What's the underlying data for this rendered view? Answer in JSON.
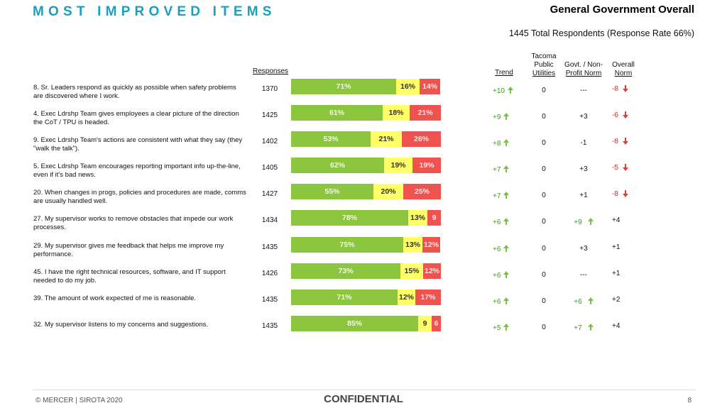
{
  "header": {
    "title": "MOST IMPROVED ITEMS",
    "subtitle": "General Government Overall",
    "respondents": "1445 Total Respondents (Response Rate  66%)"
  },
  "columns": {
    "responses": "Responses",
    "trend": "Trend",
    "tpu": [
      "Tacoma",
      "Public",
      "Utilities"
    ],
    "govt": [
      "Govt. / Non-",
      "Profit Norm"
    ],
    "overall": [
      "Overall",
      "Norm"
    ]
  },
  "rows": [
    {
      "question": "8. Sr. Leaders respond as quickly as possible when safety problems are discovered where I work.",
      "responses": "1370",
      "fav": 71,
      "neu": 16,
      "unf": 14,
      "fav_label": "71%",
      "neu_label": "16%",
      "unf_label": "14%",
      "trend": "+10",
      "tpu": "0",
      "govt": "---",
      "govt_dir": "none",
      "overall": "-8",
      "overall_dir": "down"
    },
    {
      "question": "4. Exec Ldrshp Team gives employees a clear picture of the direction the CoT / TPU is headed.",
      "responses": "1425",
      "fav": 61,
      "neu": 18,
      "unf": 21,
      "fav_label": "61%",
      "neu_label": "18%",
      "unf_label": "21%",
      "trend": "+9",
      "tpu": "0",
      "govt": "+3",
      "govt_dir": "none",
      "overall": "-6",
      "overall_dir": "down"
    },
    {
      "question": "9. Exec Ldrshp Team's actions are consistent with what they say (they \"walk the talk\").",
      "responses": "1402",
      "fav": 53,
      "neu": 21,
      "unf": 26,
      "fav_label": "53%",
      "neu_label": "21%",
      "unf_label": "26%",
      "trend": "+8",
      "tpu": "0",
      "govt": "-1",
      "govt_dir": "none",
      "overall": "-8",
      "overall_dir": "down"
    },
    {
      "question": "5. Exec Ldrshp Team encourages reporting important info up-the-line, even if it's bad news.",
      "responses": "1405",
      "fav": 62,
      "neu": 19,
      "unf": 19,
      "fav_label": "62%",
      "neu_label": "19%",
      "unf_label": "19%",
      "trend": "+7",
      "tpu": "0",
      "govt": "+3",
      "govt_dir": "none",
      "overall": "-5",
      "overall_dir": "down"
    },
    {
      "question": "20. When changes in progs, policies and procedures are made, comms are usually handled well.",
      "responses": "1427",
      "fav": 55,
      "neu": 20,
      "unf": 25,
      "fav_label": "55%",
      "neu_label": "20%",
      "unf_label": "25%",
      "trend": "+7",
      "tpu": "0",
      "govt": "+1",
      "govt_dir": "none",
      "overall": "-8",
      "overall_dir": "down"
    },
    {
      "question": "27. My supervisor works to remove obstacles that impede our work processes.",
      "responses": "1434",
      "fav": 78,
      "neu": 13,
      "unf": 9,
      "fav_label": "78%",
      "neu_label": "13%",
      "unf_label": "9",
      "trend": "+6",
      "tpu": "0",
      "govt": "+9",
      "govt_dir": "up",
      "overall": "+4",
      "overall_dir": "none"
    },
    {
      "question": "29. My supervisor gives me feedback that helps me improve my performance.",
      "responses": "1435",
      "fav": 75,
      "neu": 13,
      "unf": 12,
      "fav_label": "75%",
      "neu_label": "13%",
      "unf_label": "12%",
      "trend": "+6",
      "tpu": "0",
      "govt": "+3",
      "govt_dir": "none",
      "overall": "+1",
      "overall_dir": "none"
    },
    {
      "question": "45. I have the right technical resources, software, and IT support needed to do my job.",
      "responses": "1426",
      "fav": 73,
      "neu": 15,
      "unf": 12,
      "fav_label": "73%",
      "neu_label": "15%",
      "unf_label": "12%",
      "trend": "+6",
      "tpu": "0",
      "govt": "---",
      "govt_dir": "none",
      "overall": "+1",
      "overall_dir": "none"
    },
    {
      "question": "39. The amount of work expected of me is reasonable.",
      "responses": "1435",
      "fav": 71,
      "neu": 12,
      "unf": 17,
      "fav_label": "71%",
      "neu_label": "12%",
      "unf_label": "17%",
      "trend": "+6",
      "tpu": "0",
      "govt": "+6",
      "govt_dir": "up",
      "overall": "+2",
      "overall_dir": "none"
    },
    {
      "question": "32. My supervisor listens to my concerns and suggestions.",
      "responses": "1435",
      "fav": 85,
      "neu": 9,
      "unf": 6,
      "fav_label": "85%",
      "neu_label": "9",
      "unf_label": "6",
      "trend": "+5",
      "tpu": "0",
      "govt": "+7",
      "govt_dir": "up",
      "overall": "+4",
      "overall_dir": "none"
    }
  ],
  "colors": {
    "favorable": "#8cc63f",
    "neutral": "#ffff66",
    "unfavorable": "#ef5350",
    "title": "#1a9fc4"
  },
  "footer": {
    "copyright": "© MERCER | SIROTA 2020",
    "confidential": "CONFIDENTIAL",
    "page": "8"
  }
}
